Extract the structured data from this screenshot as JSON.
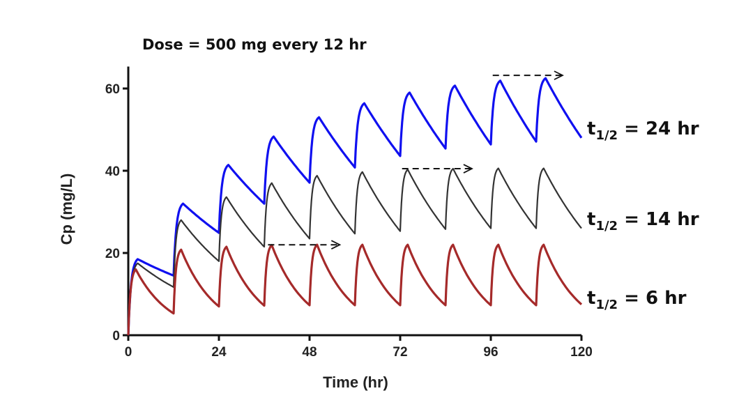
{
  "chart_data": {
    "type": "line",
    "title": "Dose = 500 mg every 12 hr",
    "xlabel": "Time (hr)",
    "ylabel": "Cp (mg/L)",
    "xlim": [
      0,
      120
    ],
    "ylim": [
      0,
      65
    ],
    "xticks": [
      0,
      24,
      48,
      72,
      96,
      120
    ],
    "yticks": [
      0,
      20,
      40,
      60
    ],
    "grid": false,
    "legend": "none",
    "series": [
      {
        "label_sub": "1/2",
        "label_prefix": "t",
        "label_rest": "= 24 hr",
        "color": "#1010f0",
        "points": [
          [
            0,
            0
          ],
          [
            2.5,
            18.5
          ],
          [
            12,
            14.5
          ],
          [
            14.5,
            32
          ],
          [
            24,
            24.9
          ],
          [
            26.5,
            41.4
          ],
          [
            36,
            32
          ],
          [
            38.5,
            48.3
          ],
          [
            48,
            37.1
          ],
          [
            50.5,
            53
          ],
          [
            60,
            40.8
          ],
          [
            62.5,
            56.4
          ],
          [
            72,
            43.6
          ],
          [
            74.5,
            59
          ],
          [
            84,
            45.4
          ],
          [
            86.5,
            60.7
          ],
          [
            96,
            46.4
          ],
          [
            98.5,
            61.9
          ],
          [
            108,
            47.1
          ],
          [
            110.5,
            62.5
          ],
          [
            120,
            48
          ]
        ]
      },
      {
        "label_sub": "1/2",
        "label_prefix": "t",
        "label_rest": "= 14 hr",
        "color": "#333333",
        "points": [
          [
            0,
            0
          ],
          [
            2.5,
            17.5
          ],
          [
            12,
            11.7
          ],
          [
            14,
            28
          ],
          [
            24,
            18
          ],
          [
            26,
            33.6
          ],
          [
            36,
            21.5
          ],
          [
            38,
            37
          ],
          [
            48,
            23.5
          ],
          [
            50,
            38.8
          ],
          [
            60,
            24.7
          ],
          [
            62,
            39.7
          ],
          [
            72,
            25.3
          ],
          [
            74,
            40.3
          ],
          [
            84,
            25.8
          ],
          [
            86,
            40.5
          ],
          [
            96,
            26
          ],
          [
            98,
            40.6
          ],
          [
            108,
            26
          ],
          [
            110,
            40.6
          ],
          [
            120,
            26
          ]
        ]
      },
      {
        "label_sub": "1/2",
        "label_prefix": "t",
        "label_rest": "= 6 hr",
        "color": "#a52a2a",
        "points": [
          [
            0,
            0
          ],
          [
            2,
            16
          ],
          [
            12,
            5.3
          ],
          [
            14,
            20.8
          ],
          [
            24,
            7
          ],
          [
            26,
            21.5
          ],
          [
            36,
            7.2
          ],
          [
            38,
            21.9
          ],
          [
            48,
            7.3
          ],
          [
            50,
            22
          ],
          [
            60,
            7.3
          ],
          [
            62,
            22
          ],
          [
            72,
            7.3
          ],
          [
            74,
            22
          ],
          [
            84,
            7.3
          ],
          [
            86,
            22
          ],
          [
            96,
            7.3
          ],
          [
            98,
            22
          ],
          [
            108,
            7.3
          ],
          [
            110,
            22
          ],
          [
            120,
            7.5
          ]
        ]
      }
    ],
    "annotations": [
      {
        "type": "dashed-arrow",
        "x": [
          37,
          56
        ],
        "y": 22
      },
      {
        "type": "dashed-arrow",
        "x": [
          72.5,
          91
        ],
        "y": 40.5
      },
      {
        "type": "dashed-arrow",
        "x": [
          96.5,
          115
        ],
        "y": 63.2
      }
    ]
  }
}
